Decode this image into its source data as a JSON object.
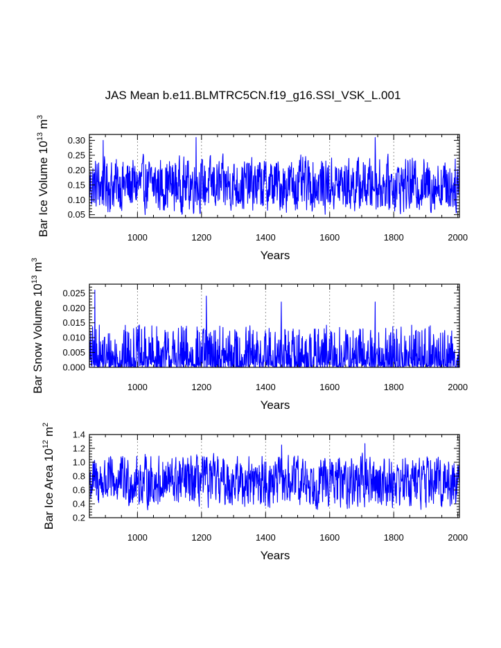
{
  "title": "JAS Mean b.e11.BLMTRC5CN.f19_g16.SSI_VSK_L.001",
  "colors": {
    "series": "#0000ff",
    "axis": "#000000",
    "gridline": "#777777"
  },
  "chart_data": [
    {
      "type": "line",
      "ylabel": "Bar Ice Volume",
      "yunit_base": "10",
      "yunit_exp": "13",
      "yunit_main": "m",
      "yunit_sup": "3",
      "xlabel": "Years",
      "xlim": [
        850,
        2005
      ],
      "ylim": [
        0.04,
        0.32
      ],
      "xticks": [
        "1000",
        "1200",
        "1400",
        "1600",
        "1800",
        "2000"
      ],
      "yticks": [
        "0.05",
        "0.10",
        "0.15",
        "0.20",
        "0.25",
        "0.30"
      ],
      "grid_x": [
        1000,
        1200,
        1400,
        1600,
        1800
      ],
      "series": [
        {
          "x_start": 850,
          "x_end": 2005,
          "mean": 0.15,
          "min": 0.05,
          "max": 0.31,
          "peaks": [
            [
              893,
              0.3
            ],
            [
              1183,
              0.31
            ],
            [
              1742,
              0.31
            ]
          ]
        }
      ]
    },
    {
      "type": "line",
      "ylabel": "Bar Snow Volume",
      "yunit_base": "10",
      "yunit_exp": "13",
      "yunit_main": "m",
      "yunit_sup": "3",
      "xlabel": "Years",
      "xlim": [
        850,
        2005
      ],
      "ylim": [
        0.0,
        0.028
      ],
      "xticks": [
        "1000",
        "1200",
        "1400",
        "1600",
        "1800",
        "2000"
      ],
      "yticks": [
        "0.000",
        "0.005",
        "0.010",
        "0.015",
        "0.020",
        "0.025"
      ],
      "grid_x": [
        1000,
        1200,
        1400,
        1600,
        1800
      ],
      "series": [
        {
          "x_start": 850,
          "x_end": 2005,
          "mean": 0.0035,
          "min": 0.0,
          "max": 0.026,
          "peaks": [
            [
              867,
              0.026
            ],
            [
              1215,
              0.024
            ],
            [
              1449,
              0.022
            ],
            [
              1742,
              0.022
            ]
          ]
        }
      ]
    },
    {
      "type": "line",
      "ylabel": "Bar Ice Area",
      "yunit_base": "10",
      "yunit_exp": "12",
      "yunit_main": "m",
      "yunit_sup": "2",
      "xlabel": "Years",
      "xlim": [
        850,
        2005
      ],
      "ylim": [
        0.2,
        1.4
      ],
      "xticks": [
        "1000",
        "1200",
        "1400",
        "1600",
        "1800",
        "2000"
      ],
      "yticks": [
        "0.2",
        "0.4",
        "0.6",
        "0.8",
        "1.0",
        "1.2",
        "1.4"
      ],
      "grid_x": [
        1000,
        1200,
        1400,
        1600,
        1800
      ],
      "series": [
        {
          "x_start": 850,
          "x_end": 2005,
          "mean": 0.72,
          "min": 0.22,
          "max": 1.27,
          "peaks": [
            [
              1450,
              1.25
            ],
            [
              1710,
              1.27
            ]
          ]
        }
      ]
    }
  ]
}
